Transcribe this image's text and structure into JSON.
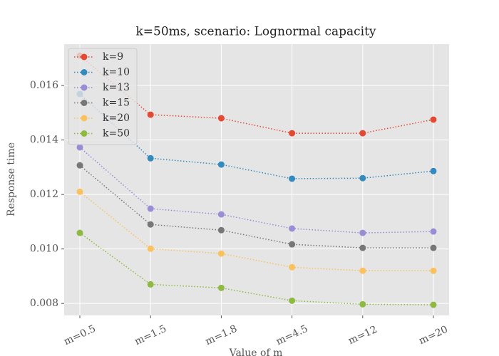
{
  "chart_data": {
    "type": "line",
    "title": "k=50ms, scenario: Lognormal capacity",
    "x_label": "Value of m",
    "y_label": "Response time",
    "categories": [
      "m=0.5",
      "m=1.5",
      "m=1.8",
      "m=4.5",
      "m=12",
      "m=20"
    ],
    "series": [
      {
        "name": "k=9",
        "color": "#E24A33",
        "values": [
          0.0171,
          0.01493,
          0.0148,
          0.01425,
          0.01425,
          0.01475
        ]
      },
      {
        "name": "k=10",
        "color": "#348ABD",
        "values": [
          0.01569,
          0.01333,
          0.0131,
          0.01258,
          0.0126,
          0.01286
        ]
      },
      {
        "name": "k=13",
        "color": "#988ED5",
        "values": [
          0.01373,
          0.01148,
          0.01127,
          0.01075,
          0.01059,
          0.01064
        ]
      },
      {
        "name": "k=15",
        "color": "#777777",
        "values": [
          0.01307,
          0.0109,
          0.01069,
          0.01017,
          0.01004,
          0.01004
        ]
      },
      {
        "name": "k=20",
        "color": "#FBC15E",
        "values": [
          0.0121,
          0.01001,
          0.00983,
          0.00933,
          0.0092,
          0.0092
        ]
      },
      {
        "name": "k=50",
        "color": "#8EBA42",
        "values": [
          0.01059,
          0.0087,
          0.00857,
          0.0081,
          0.00797,
          0.00795
        ]
      }
    ],
    "ylim": [
      0.00756,
      0.01752
    ],
    "yticks": [
      0.008,
      {
        "value": 0.01,
        "label": "0.010"
      },
      0.012,
      0.014,
      0.016
    ],
    "grid": true,
    "legend": "upper-left"
  }
}
